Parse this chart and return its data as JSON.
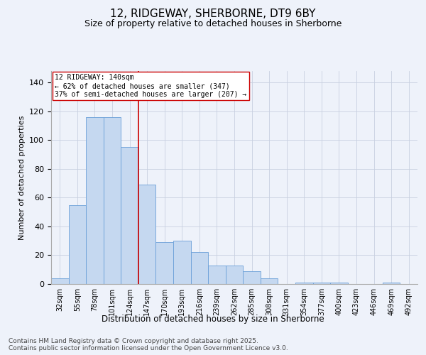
{
  "title": "12, RIDGEWAY, SHERBORNE, DT9 6BY",
  "subtitle": "Size of property relative to detached houses in Sherborne",
  "xlabel": "Distribution of detached houses by size in Sherborne",
  "ylabel": "Number of detached properties",
  "categories": [
    "32sqm",
    "55sqm",
    "78sqm",
    "101sqm",
    "124sqm",
    "147sqm",
    "170sqm",
    "193sqm",
    "216sqm",
    "239sqm",
    "262sqm",
    "285sqm",
    "308sqm",
    "331sqm",
    "354sqm",
    "377sqm",
    "400sqm",
    "423sqm",
    "446sqm",
    "469sqm",
    "492sqm"
  ],
  "values": [
    4,
    55,
    116,
    116,
    95,
    69,
    29,
    30,
    22,
    13,
    13,
    9,
    4,
    0,
    1,
    1,
    1,
    0,
    0,
    1,
    0
  ],
  "bar_color": "#c5d8f0",
  "bar_edge_color": "#6a9fd8",
  "vline_x_index": 5,
  "vline_color": "#cc0000",
  "annotation_text": "12 RIDGEWAY: 140sqm\n← 62% of detached houses are smaller (347)\n37% of semi-detached houses are larger (207) →",
  "annotation_box_color": "#ffffff",
  "annotation_box_edge_color": "#cc0000",
  "annotation_fontsize": 7,
  "ylim": [
    0,
    148
  ],
  "yticks": [
    0,
    20,
    40,
    60,
    80,
    100,
    120,
    140
  ],
  "grid_color": "#c8d0e0",
  "background_color": "#eef2fa",
  "footer_text": "Contains HM Land Registry data © Crown copyright and database right 2025.\nContains public sector information licensed under the Open Government Licence v3.0.",
  "title_fontsize": 11,
  "subtitle_fontsize": 9,
  "footer_fontsize": 6.5
}
